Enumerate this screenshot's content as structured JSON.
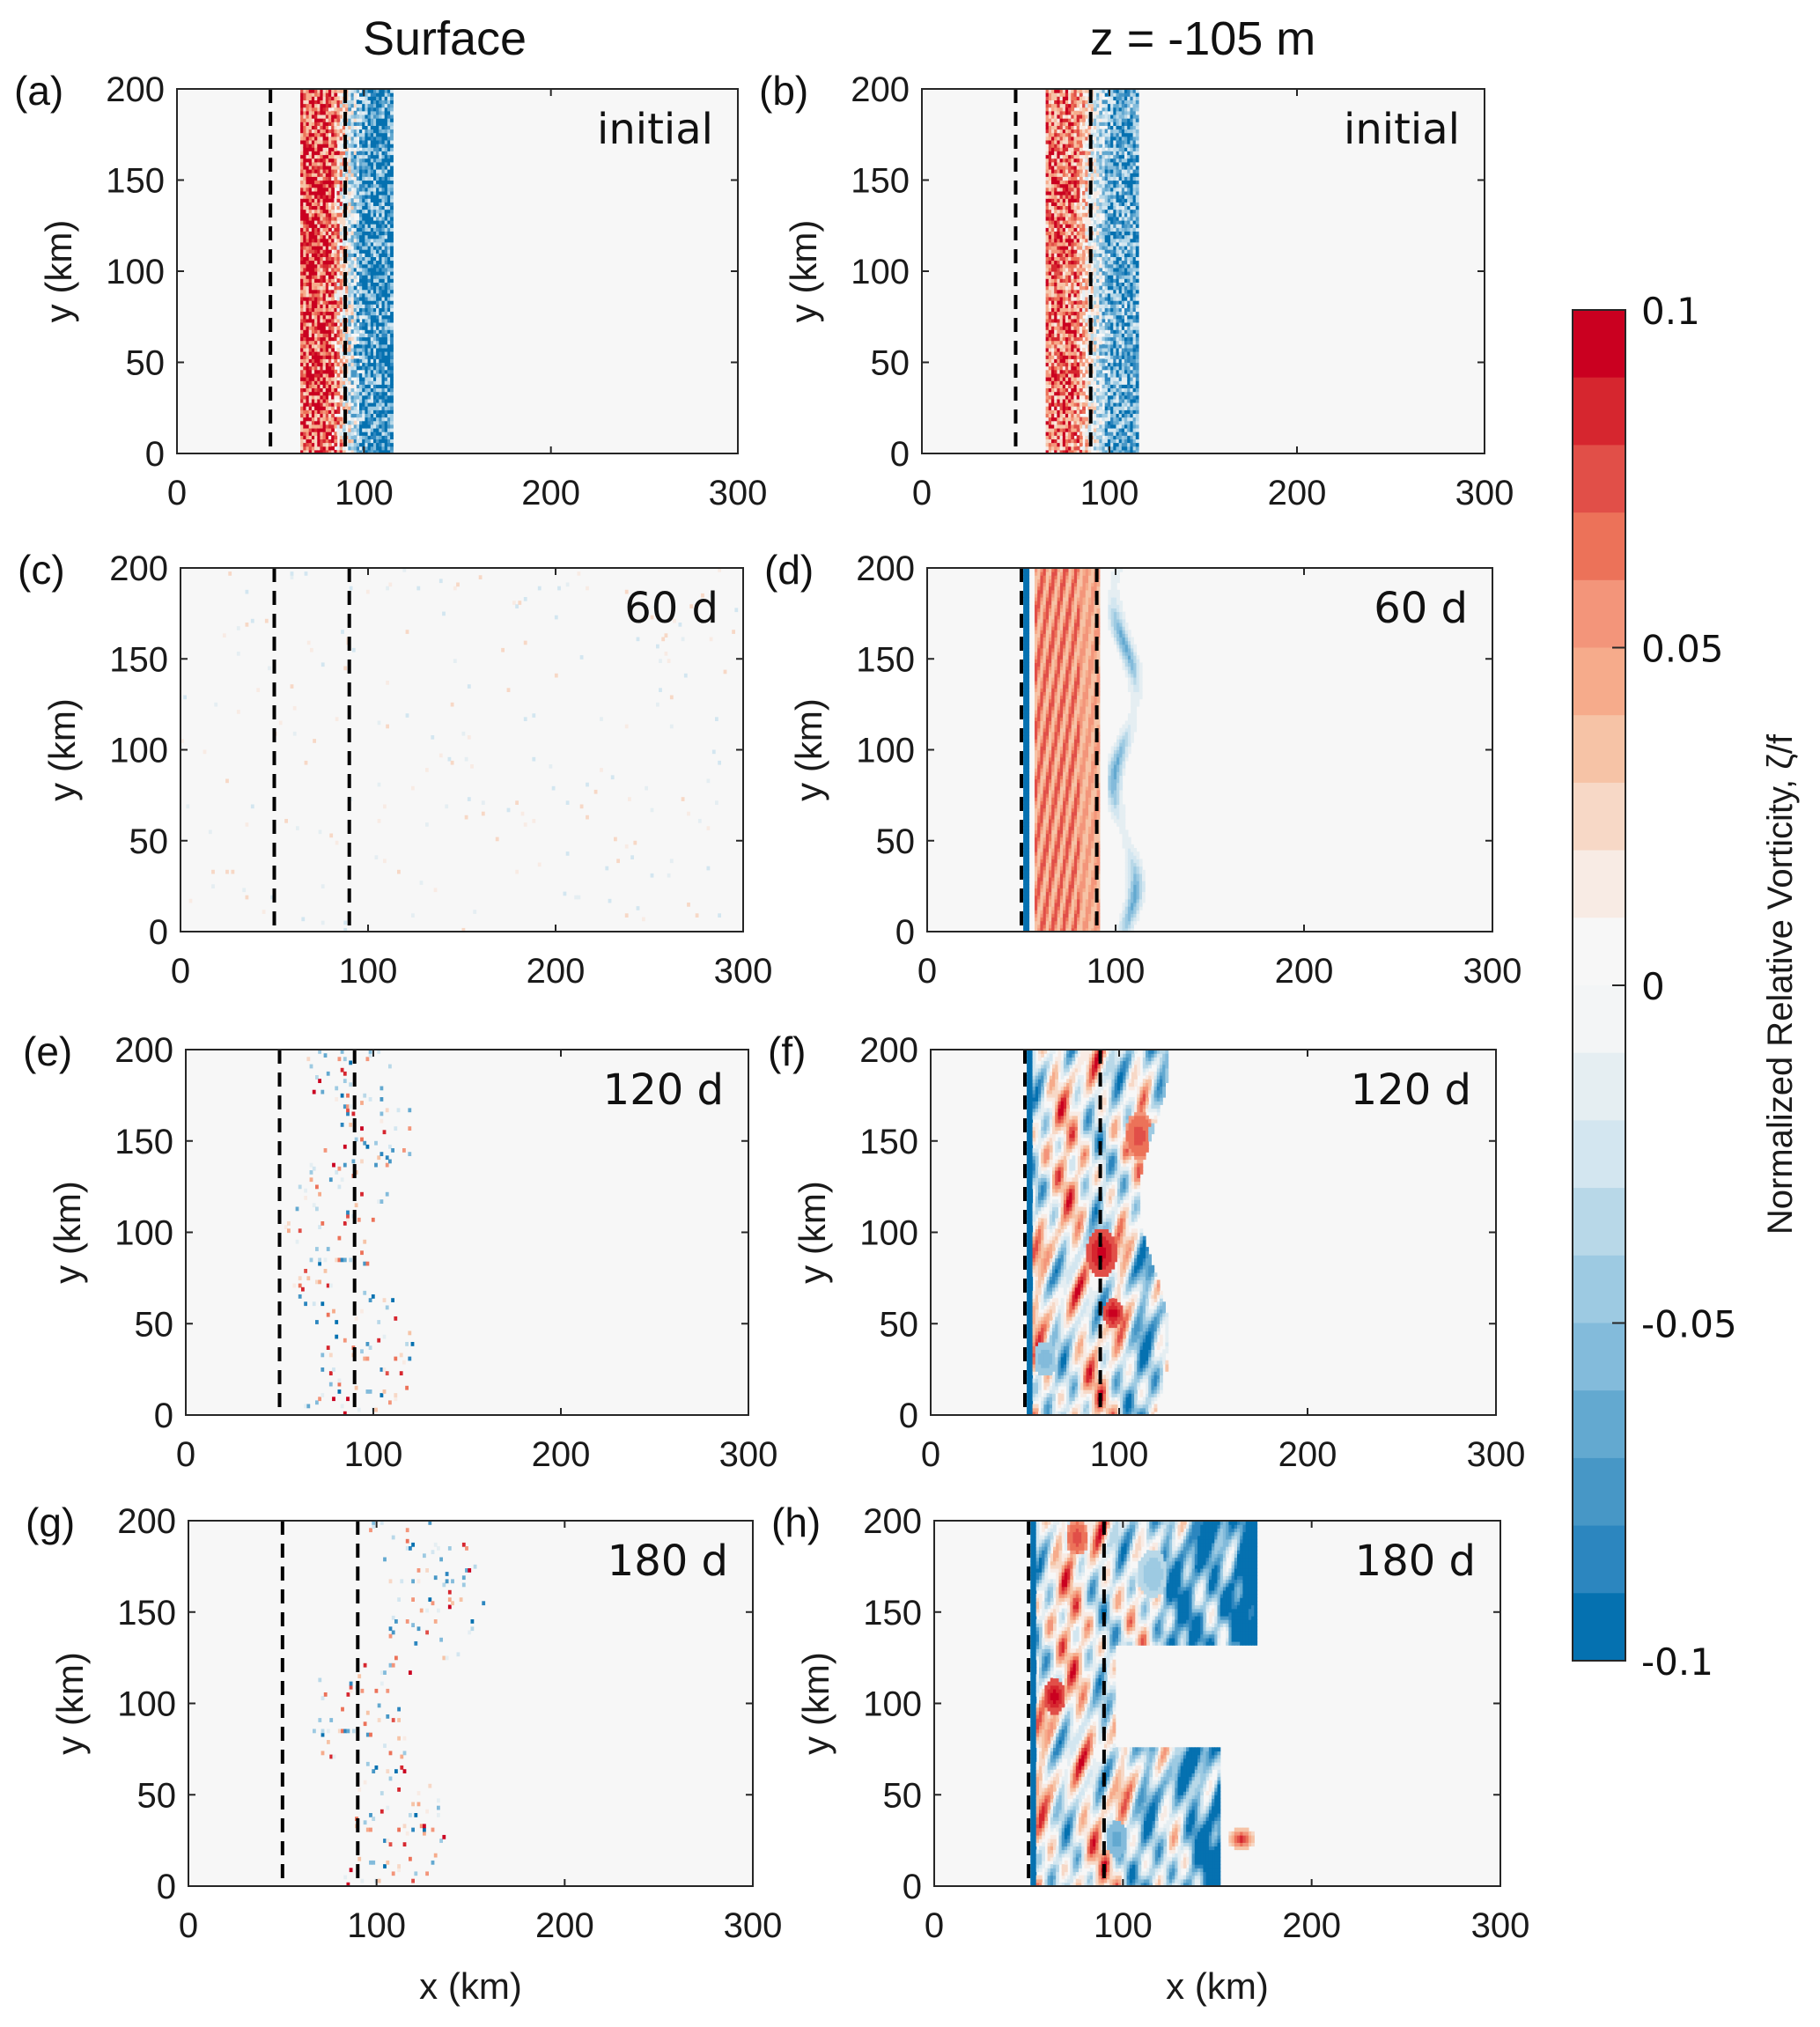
{
  "chart_data": {
    "type": "heatmap",
    "column_titles": [
      "Surface",
      "z = -105 m"
    ],
    "xlabel": "x (km)",
    "ylabel": "y (km)",
    "xlim": [
      0,
      300
    ],
    "ylim": [
      0,
      200
    ],
    "xticks": [
      "0",
      "100",
      "200",
      "300"
    ],
    "yticks": [
      "0",
      "50",
      "100",
      "150",
      "200"
    ],
    "dashed_lines_x_km": [
      50,
      90
    ],
    "panels": [
      {
        "label": "(a)",
        "annotation": "initial",
        "depth": "Surface",
        "time": "initial"
      },
      {
        "label": "(b)",
        "annotation": "initial",
        "depth": "z = -105 m",
        "time": "initial"
      },
      {
        "label": "(c)",
        "annotation": "60 d",
        "depth": "Surface",
        "time": "60 d"
      },
      {
        "label": "(d)",
        "annotation": "60 d",
        "depth": "z = -105 m",
        "time": "60 d"
      },
      {
        "label": "(e)",
        "annotation": "120 d",
        "depth": "Surface",
        "time": "120 d"
      },
      {
        "label": "(f)",
        "annotation": "120 d",
        "depth": "z = -105 m",
        "time": "120 d"
      },
      {
        "label": "(g)",
        "annotation": "180 d",
        "depth": "Surface",
        "time": "180 d"
      },
      {
        "label": "(h)",
        "annotation": "180 d",
        "depth": "z = -105 m",
        "time": "180 d"
      }
    ],
    "colorbar": {
      "label": "Normalized Relative Vorticity, ζ/f",
      "range": [
        -0.1,
        0.1
      ],
      "ticks": [
        "0.1",
        "0.05",
        "0",
        "-0.05",
        "-0.1"
      ],
      "levels_top_to_bottom": [
        "#ca0020",
        "#d6262f",
        "#e14f48",
        "#ec7259",
        "#f3957a",
        "#f6ab8b",
        "#f6c3a6",
        "#f7d8c6",
        "#f8ebe4",
        "#f7f7f7",
        "#f3f5f6",
        "#e5eef2",
        "#d3e6f0",
        "#b8d8e8",
        "#9dcae2",
        "#83bbdb",
        "#63a9d0",
        "#4797c6",
        "#2c86bf",
        "#0571b0"
      ]
    }
  }
}
